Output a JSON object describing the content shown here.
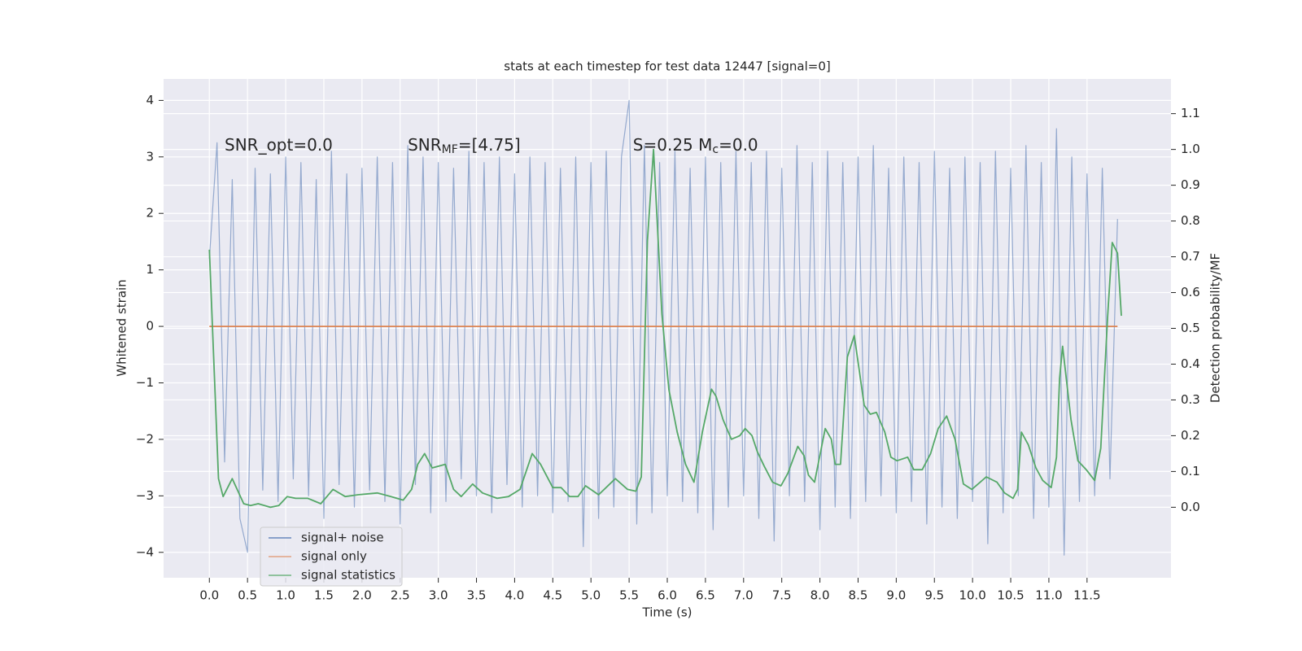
{
  "chart_data": {
    "type": "line",
    "title": "stats at each timestep for test data 12447 [signal=0]",
    "xlabel": "Time (s)",
    "ylabel": "Whitened strain",
    "y2label": "Detection probability/MF",
    "annotations": [
      [
        "SNR_opt=0.0"
      ],
      [
        "SNR",
        "MF",
        "=[4.75]"
      ],
      [
        "S=0.25   M",
        "c",
        "=0.0"
      ]
    ],
    "xlim": [
      -0.6,
      12.6
    ],
    "xticks": [
      {
        "value": 0,
        "label": "0.0"
      },
      0.5,
      {
        "value": 1,
        "label": "1.0"
      },
      1.5,
      {
        "value": 2,
        "label": "2.0"
      },
      2.5,
      {
        "value": 3,
        "label": "3.0"
      },
      3.5,
      {
        "value": 4,
        "label": "4.0"
      },
      4.5,
      {
        "value": 5,
        "label": "5.0"
      },
      5.5,
      {
        "value": 6,
        "label": "6.0"
      },
      6.5,
      {
        "value": 7,
        "label": "7.0"
      },
      7.5,
      {
        "value": 8,
        "label": "8.0"
      },
      8.5,
      {
        "value": 9,
        "label": "9.0"
      },
      9.5,
      {
        "value": 10,
        "label": "10.0"
      },
      10.5,
      {
        "value": 11,
        "label": "11.0"
      },
      11.5
    ],
    "ylim": [
      -4.45,
      4.38
    ],
    "yticks": [
      {
        "value": -4,
        "label": "−4"
      },
      {
        "value": -3,
        "label": "−3"
      },
      {
        "value": -2,
        "label": "−2"
      },
      {
        "value": -1,
        "label": "−1"
      },
      0,
      1,
      2,
      3,
      4
    ],
    "y2lim": [
      -0.197,
      1.197
    ],
    "y2ticks": [
      {
        "value": 0,
        "label": "0.0"
      },
      0.1,
      0.2,
      0.3,
      0.4,
      0.5,
      0.6,
      0.7,
      0.8,
      0.9,
      {
        "value": 1,
        "label": "1.0"
      },
      1.1
    ],
    "grid": true,
    "legend": "lower left",
    "series": [
      {
        "name": "signal+ noise",
        "color": "#4c72b0",
        "x": [
          0,
          0.1,
          0.2,
          0.3,
          0.4,
          0.5,
          0.6,
          0.7,
          0.8,
          0.9,
          1,
          1.1,
          1.2,
          1.3,
          1.4,
          1.5,
          1.6,
          1.7,
          1.8,
          1.9,
          2,
          2.1,
          2.2,
          2.3,
          2.4,
          2.5,
          2.6,
          2.7,
          2.8,
          2.9,
          3,
          3.1,
          3.2,
          3.3,
          3.4,
          3.5,
          3.6,
          3.7,
          3.8,
          3.9,
          4,
          4.1,
          4.2,
          4.3,
          4.4,
          4.5,
          4.6,
          4.7,
          4.8,
          4.9,
          5,
          5.1,
          5.2,
          5.3,
          5.4,
          5.5,
          5.6,
          5.7,
          5.8,
          5.9,
          6,
          6.1,
          6.2,
          6.3,
          6.4,
          6.5,
          6.6,
          6.7,
          6.8,
          6.9,
          7,
          7.1,
          7.2,
          7.3,
          7.4,
          7.5,
          7.6,
          7.7,
          7.8,
          7.9,
          8,
          8.1,
          8.2,
          8.3,
          8.4,
          8.5,
          8.6,
          8.7,
          8.8,
          8.9,
          9,
          9.1,
          9.2,
          9.3,
          9.4,
          9.5,
          9.6,
          9.7,
          9.8,
          9.9,
          10,
          10.1,
          10.2,
          10.3,
          10.4,
          10.5,
          10.6,
          10.7,
          10.8,
          10.9,
          11,
          11.1,
          11.2,
          11.3,
          11.4,
          11.5,
          11.6,
          11.7,
          11.8,
          11.9
        ],
        "values": [
          1.2,
          3.25,
          -2.4,
          2.6,
          -3.4,
          -4.0,
          2.8,
          -2.9,
          2.7,
          -3.1,
          3.0,
          -2.7,
          2.9,
          -3.0,
          2.6,
          -3.4,
          3.1,
          -2.8,
          2.7,
          -3.2,
          2.8,
          -2.9,
          3.0,
          -3.1,
          2.9,
          -3.5,
          3.2,
          -2.8,
          3.0,
          -3.3,
          2.9,
          -3.1,
          2.8,
          -2.7,
          3.1,
          -3.0,
          2.9,
          -3.3,
          3.0,
          -2.8,
          2.7,
          -3.2,
          3.0,
          -3.0,
          2.9,
          -3.3,
          2.8,
          -3.1,
          3.0,
          -3.9,
          2.9,
          -3.4,
          3.1,
          -3.2,
          3.0,
          4.0,
          -3.5,
          3.2,
          -3.3,
          2.9,
          -3.0,
          3.1,
          -3.1,
          2.8,
          -3.3,
          3.0,
          -3.6,
          2.9,
          -3.2,
          3.1,
          -3.0,
          2.9,
          -3.4,
          3.1,
          -3.8,
          2.8,
          -3.0,
          3.2,
          -3.1,
          2.9,
          -3.6,
          3.1,
          -3.2,
          2.9,
          -3.4,
          3.0,
          -3.1,
          3.2,
          -3.0,
          2.8,
          -3.3,
          3.0,
          -3.1,
          2.9,
          -3.5,
          3.1,
          -3.2,
          2.8,
          -3.4,
          3.0,
          -3.1,
          2.9,
          -3.85,
          3.1,
          -3.3,
          2.8,
          -3.0,
          3.2,
          -3.4,
          2.9,
          -3.2,
          3.5,
          -4.05,
          3.0,
          -3.1,
          2.7,
          -3.0,
          2.8,
          -2.7,
          1.9
        ]
      },
      {
        "name": "signal only",
        "color": "#dd8452",
        "x": [
          0,
          11.9
        ],
        "values": [
          0,
          0
        ]
      },
      {
        "name": "signal statistics",
        "color": "#55a868",
        "axis": "y2",
        "x": [
          0,
          0.12,
          0.18,
          0.3,
          0.45,
          0.54,
          0.64,
          0.8,
          0.91,
          1.02,
          1.13,
          1.29,
          1.46,
          1.62,
          1.78,
          1.95,
          2.2,
          2.38,
          2.54,
          2.65,
          2.73,
          2.82,
          2.92,
          3.09,
          3.2,
          3.3,
          3.45,
          3.58,
          3.77,
          3.92,
          4.07,
          4.23,
          4.34,
          4.5,
          4.61,
          4.72,
          4.83,
          4.93,
          5.1,
          5.32,
          5.48,
          5.59,
          5.66,
          5.74,
          5.82,
          5.93,
          6.02,
          6.13,
          6.24,
          6.35,
          6.46,
          6.58,
          6.64,
          6.73,
          6.84,
          6.95,
          7.02,
          7.11,
          7.18,
          7.27,
          7.38,
          7.49,
          7.58,
          7.71,
          7.79,
          7.85,
          7.93,
          8.07,
          8.15,
          8.2,
          8.27,
          8.36,
          8.45,
          8.58,
          8.66,
          8.74,
          8.85,
          8.93,
          9.01,
          9.15,
          9.23,
          9.34,
          9.45,
          9.55,
          9.66,
          9.77,
          9.88,
          9.99,
          10.1,
          10.18,
          10.32,
          10.42,
          10.53,
          10.59,
          10.64,
          10.73,
          10.83,
          10.92,
          11.03,
          11.1,
          11.14,
          11.18,
          11.29,
          11.38,
          11.49,
          11.6,
          11.68,
          11.77,
          11.83,
          11.9,
          11.95
        ],
        "values": [
          0.72,
          0.08,
          0.03,
          0.08,
          0.01,
          0.005,
          0.01,
          0.0,
          0.005,
          0.03,
          0.025,
          0.025,
          0.01,
          0.05,
          0.03,
          0.035,
          0.04,
          0.03,
          0.02,
          0.05,
          0.12,
          0.15,
          0.11,
          0.12,
          0.05,
          0.03,
          0.065,
          0.04,
          0.025,
          0.03,
          0.05,
          0.15,
          0.12,
          0.055,
          0.055,
          0.03,
          0.03,
          0.06,
          0.035,
          0.08,
          0.05,
          0.045,
          0.085,
          0.745,
          1.0,
          0.54,
          0.33,
          0.21,
          0.12,
          0.07,
          0.21,
          0.33,
          0.31,
          0.245,
          0.19,
          0.2,
          0.22,
          0.2,
          0.155,
          0.115,
          0.07,
          0.06,
          0.095,
          0.17,
          0.145,
          0.09,
          0.07,
          0.22,
          0.19,
          0.12,
          0.12,
          0.42,
          0.48,
          0.285,
          0.26,
          0.265,
          0.21,
          0.14,
          0.13,
          0.14,
          0.105,
          0.105,
          0.15,
          0.22,
          0.255,
          0.19,
          0.065,
          0.05,
          0.07,
          0.085,
          0.07,
          0.04,
          0.025,
          0.05,
          0.21,
          0.175,
          0.11,
          0.075,
          0.055,
          0.14,
          0.36,
          0.45,
          0.245,
          0.13,
          0.105,
          0.075,
          0.165,
          0.535,
          0.74,
          0.71,
          0.535
        ]
      }
    ]
  }
}
